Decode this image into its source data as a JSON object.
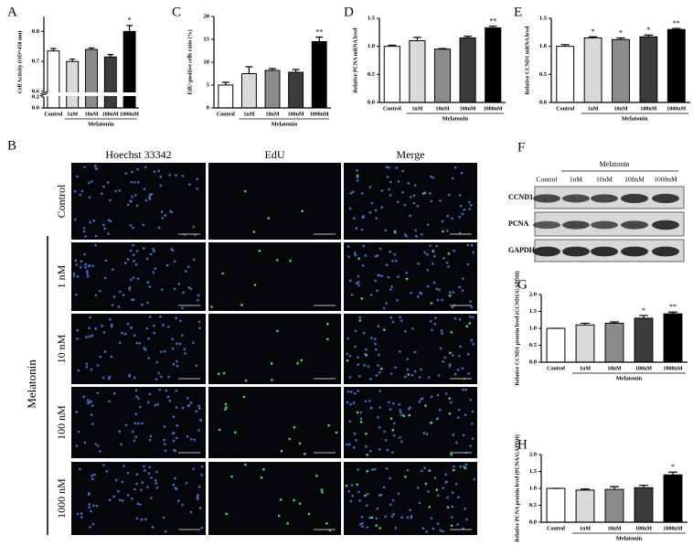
{
  "chart_data": [
    {
      "type": "bar",
      "panel": "A",
      "ylabel": "Cell Activity (OD=450 nm)",
      "categories": [
        "Control",
        "1nM",
        "10nM",
        "100nM",
        "1000nM"
      ],
      "group_label": "Melatonin",
      "values": [
        0.735,
        0.7,
        0.74,
        0.715,
        0.8
      ],
      "errors": [
        0.008,
        0.008,
        0.005,
        0.008,
        0.02
      ],
      "significance": [
        null,
        null,
        null,
        null,
        "*"
      ],
      "colors": [
        "#ffffff",
        "#d9d9d9",
        "#8c8c8c",
        "#3c3c3c",
        "#000000"
      ],
      "ylim": [
        0,
        0.85
      ],
      "axis_break": [
        0.2,
        0.6
      ],
      "yticks": [
        {
          "value": 0,
          "label": "0.0"
        },
        0.2,
        0.6,
        0.7,
        0.8
      ]
    },
    {
      "type": "bar",
      "panel": "C",
      "ylabel": "EdU-positive cells ratio (%)",
      "categories": [
        "Control",
        "1nM",
        "10nM",
        "100nM",
        "1000nM"
      ],
      "group_label": "Melatonin",
      "values": [
        5,
        7.5,
        8.2,
        7.8,
        14.5
      ],
      "errors": [
        0.6,
        1.5,
        0.4,
        0.6,
        1.0
      ],
      "significance": [
        null,
        null,
        null,
        null,
        "**"
      ],
      "colors": [
        "#ffffff",
        "#d9d9d9",
        "#8c8c8c",
        "#3c3c3c",
        "#000000"
      ],
      "ylim": [
        0,
        20
      ],
      "yticks": [
        0,
        5,
        10,
        15,
        20
      ]
    },
    {
      "type": "bar",
      "panel": "D",
      "ylabel": "Relative PCNA mRNA level",
      "categories": [
        "Control",
        "1nM",
        "10nM",
        "100nM",
        "1000nM"
      ],
      "group_label": "Melatonin",
      "values": [
        1.0,
        1.1,
        0.95,
        1.15,
        1.33
      ],
      "errors": [
        0.02,
        0.06,
        0.01,
        0.03,
        0.03
      ],
      "significance": [
        null,
        null,
        null,
        null,
        "**"
      ],
      "colors": [
        "#ffffff",
        "#d9d9d9",
        "#8c8c8c",
        "#3c3c3c",
        "#000000"
      ],
      "ylim": [
        0,
        1.5
      ],
      "yticks": [
        {
          "value": 0,
          "label": "0.0"
        },
        0.5,
        {
          "value": 1,
          "label": "1.0"
        },
        1.5
      ]
    },
    {
      "type": "bar",
      "panel": "E",
      "ylabel": "Relative CCND1 mRNA level",
      "categories": [
        "Control",
        "1nM",
        "10nM",
        "100nM",
        "1000nM"
      ],
      "group_label": "Melatonin",
      "values": [
        1.0,
        1.15,
        1.12,
        1.17,
        1.3
      ],
      "errors": [
        0.03,
        0.02,
        0.03,
        0.03,
        0.02
      ],
      "significance": [
        null,
        "*",
        "*",
        "*",
        "**"
      ],
      "colors": [
        "#ffffff",
        "#d9d9d9",
        "#8c8c8c",
        "#3c3c3c",
        "#000000"
      ],
      "ylim": [
        0,
        1.5
      ],
      "yticks": [
        {
          "value": 0,
          "label": "0.0"
        },
        0.5,
        {
          "value": 1,
          "label": "1.0"
        },
        1.5
      ]
    },
    {
      "type": "bar",
      "panel": "G",
      "ylabel": "Relative CCND1 protein level (CCND1/GAPDH)",
      "categories": [
        "Control",
        "1nM",
        "10nM",
        "100nM",
        "1000nM"
      ],
      "group_label": "Melatonin",
      "values": [
        1.0,
        1.1,
        1.15,
        1.3,
        1.43
      ],
      "errors": [
        0,
        0.05,
        0.04,
        0.08,
        0.05
      ],
      "significance": [
        null,
        null,
        null,
        "*",
        "**"
      ],
      "colors": [
        "#ffffff",
        "#d9d9d9",
        "#8c8c8c",
        "#3c3c3c",
        "#000000"
      ],
      "ylim": [
        0,
        2
      ],
      "yticks": [
        {
          "value": 0,
          "label": "0.0"
        },
        0.5,
        {
          "value": 1,
          "label": "1.0"
        },
        1.5,
        {
          "value": 2,
          "label": "2.0"
        }
      ]
    },
    {
      "type": "bar",
      "panel": "H",
      "ylabel": "Relative PCNA protein level (PCNA/GAPDH)",
      "categories": [
        "Control",
        "1nM",
        "10nM",
        "100nM",
        "1000nM"
      ],
      "group_label": "Melatonin",
      "values": [
        1.0,
        0.95,
        0.97,
        1.02,
        1.4
      ],
      "errors": [
        0,
        0.03,
        0.08,
        0.07,
        0.08
      ],
      "significance": [
        null,
        null,
        null,
        null,
        "*"
      ],
      "colors": [
        "#ffffff",
        "#d9d9d9",
        "#8c8c8c",
        "#3c3c3c",
        "#000000"
      ],
      "ylim": [
        0,
        2
      ],
      "yticks": [
        {
          "value": 0,
          "label": "0.0"
        },
        0.5,
        {
          "value": 1,
          "label": "1.0"
        },
        1.5,
        {
          "value": 2,
          "label": "2.0"
        }
      ]
    }
  ],
  "microscopy": {
    "panel": "B",
    "columns": [
      "Hoechst 33342",
      "EdU",
      "Merge"
    ],
    "rows": [
      "Control",
      "1 nM",
      "10 nM",
      "100 nM",
      "1000 nM"
    ],
    "group_label": "Melatonin"
  },
  "blot": {
    "panel": "F",
    "group_label": "Melatonin",
    "lanes": [
      "Control",
      "1nM",
      "10nM",
      "100nM",
      "1000nM"
    ],
    "proteins": [
      "CCND1",
      "PCNA",
      "GAPDH"
    ]
  }
}
